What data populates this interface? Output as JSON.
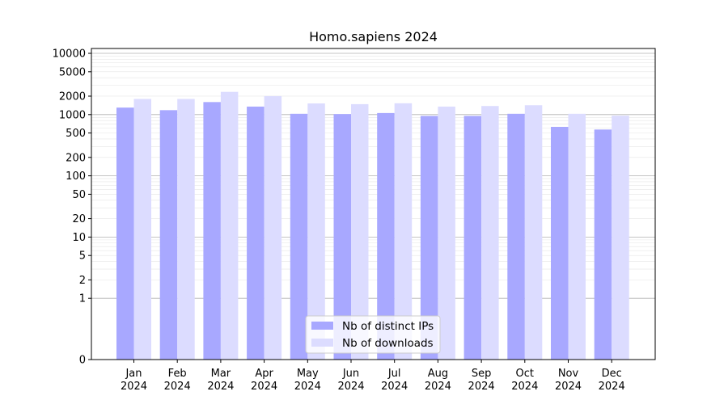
{
  "chart_data": {
    "type": "bar",
    "title": "Homo.sapiens 2024",
    "categories": [
      "Jan\n2024",
      "Feb\n2024",
      "Mar\n2024",
      "Apr\n2024",
      "May\n2024",
      "Jun\n2024",
      "Jul\n2024",
      "Aug\n2024",
      "Sep\n2024",
      "Oct\n2024",
      "Nov\n2024",
      "Dec\n2024"
    ],
    "series": [
      {
        "name": "Nb of distinct IPs",
        "color": "#a8a8ff",
        "values": [
          1300,
          1180,
          1600,
          1350,
          1030,
          1020,
          1060,
          950,
          950,
          1030,
          630,
          570
        ]
      },
      {
        "name": "Nb of downloads",
        "color": "#dcdcff",
        "values": [
          1800,
          1800,
          2350,
          2000,
          1520,
          1480,
          1530,
          1350,
          1380,
          1420,
          1030,
          960
        ]
      }
    ],
    "y_scale": "symlog",
    "ylim": [
      0,
      12000
    ],
    "y_ticks": [
      "0",
      "1",
      "2",
      "5",
      "10",
      "20",
      "50",
      "100",
      "200",
      "500",
      "1000",
      "2000",
      "5000",
      "10000"
    ],
    "grid": true,
    "legend_position": "bottom-center",
    "xlabel": "",
    "ylabel": ""
  }
}
